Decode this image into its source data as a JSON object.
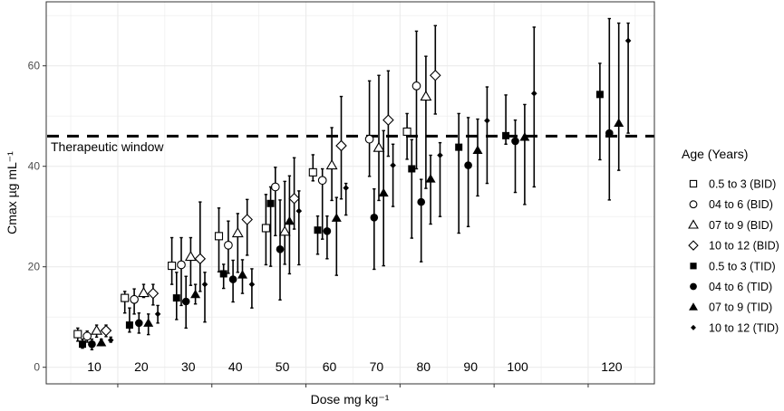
{
  "chart_data": {
    "type": "scatter",
    "title": "",
    "xlabel": "Dose mg kg⁻¹",
    "ylabel": "Cmax µg  mL⁻¹",
    "ylim": [
      0,
      70
    ],
    "yticks": [
      0,
      20,
      40,
      60
    ],
    "grid": true,
    "legend_title": "Age (Years)",
    "legend_position": "right",
    "reference_line": {
      "y": 46,
      "label": "Therapeutic window",
      "style": "dashed"
    },
    "dose_groups": [
      10,
      20,
      30,
      40,
      50,
      60,
      70,
      80,
      90,
      100,
      120
    ],
    "dose_labels": [
      "10",
      "20",
      "30",
      "40",
      "50",
      "60",
      "70",
      "80",
      "90",
      "100",
      "120"
    ],
    "series": [
      {
        "name": "0.5 to 3 (BID)",
        "marker": "square-open",
        "points": [
          [
            10,
            6.6,
            5.2,
            7.8
          ],
          [
            20,
            13.8,
            10.8,
            15.1
          ],
          [
            30,
            20.2,
            16.5,
            25.8
          ],
          [
            40,
            26.1,
            19.0,
            31.7
          ],
          [
            50,
            27.7,
            20.4,
            34.4
          ],
          [
            60,
            38.8,
            37.1,
            42.3
          ],
          [
            80,
            46.9,
            41.4,
            50.5
          ]
        ]
      },
      {
        "name": "04 to 6 (BID)",
        "marker": "circle-open",
        "points": [
          [
            10,
            6.2,
            5.0,
            7.2
          ],
          [
            20,
            13.5,
            10.6,
            15.6
          ],
          [
            30,
            20.4,
            12.3,
            25.8
          ],
          [
            40,
            24.3,
            18.7,
            29.1
          ],
          [
            50,
            35.9,
            26.2,
            39.8
          ],
          [
            60,
            37.2,
            25.5,
            39.5
          ],
          [
            70,
            45.4,
            38.0,
            57.0
          ],
          [
            80,
            56.0,
            39.5,
            66.9
          ]
        ]
      },
      {
        "name": "07 to 9 (BID)",
        "marker": "triangle-open",
        "points": [
          [
            10,
            7.3,
            6.0,
            8.4
          ],
          [
            20,
            14.8,
            13.9,
            16.5
          ],
          [
            30,
            22.0,
            16.3,
            25.8
          ],
          [
            40,
            26.7,
            18.9,
            30.6
          ],
          [
            50,
            27.0,
            20.5,
            37.0
          ],
          [
            60,
            40.2,
            33.2,
            47.7
          ],
          [
            70,
            43.7,
            33.2,
            58.1
          ],
          [
            80,
            53.9,
            35.6,
            61.9
          ]
        ]
      },
      {
        "name": "10 to 12 (BID)",
        "marker": "diamond-open",
        "points": [
          [
            10,
            7.3,
            6.1,
            8.4
          ],
          [
            20,
            14.7,
            12.4,
            16.5
          ],
          [
            30,
            21.6,
            15.1,
            32.9
          ],
          [
            40,
            29.4,
            22.3,
            33.4
          ],
          [
            50,
            33.6,
            27.5,
            41.7
          ],
          [
            60,
            44.1,
            33.5,
            53.9
          ],
          [
            70,
            49.2,
            42.0,
            59.0
          ],
          [
            80,
            58.1,
            50.4,
            68.0
          ]
        ]
      },
      {
        "name": "0.5 to 3 (TID)",
        "marker": "square-filled",
        "points": [
          [
            10,
            4.6,
            3.8,
            5.6
          ],
          [
            20,
            8.4,
            7.0,
            11.8
          ],
          [
            30,
            13.8,
            9.5,
            18.9
          ],
          [
            40,
            18.6,
            15.7,
            20.5
          ],
          [
            50,
            32.6,
            20.1,
            35.9
          ],
          [
            60,
            27.3,
            22.5,
            30.1
          ],
          [
            80,
            39.5,
            25.7,
            45.3
          ],
          [
            90,
            43.8,
            26.7,
            50.5
          ],
          [
            100,
            46.1,
            44.4,
            54.2
          ],
          [
            120,
            54.3,
            41.3,
            60.5
          ]
        ]
      },
      {
        "name": "04 to 6 (TID)",
        "marker": "circle-filled",
        "points": [
          [
            10,
            4.6,
            3.5,
            5.6
          ],
          [
            20,
            8.8,
            6.8,
            10.8
          ],
          [
            30,
            13.1,
            7.8,
            18.1
          ],
          [
            40,
            17.5,
            13.0,
            21.3
          ],
          [
            50,
            23.5,
            13.4,
            33.3
          ],
          [
            60,
            27.1,
            21.6,
            30.1
          ],
          [
            70,
            29.8,
            19.5,
            35.5
          ],
          [
            80,
            32.9,
            21.0,
            37.4
          ],
          [
            90,
            40.2,
            28.0,
            49.7
          ],
          [
            100,
            45.0,
            34.8,
            49.2
          ],
          [
            120,
            46.6,
            33.3,
            69.4
          ]
        ]
      },
      {
        "name": "07 to 9 (TID)",
        "marker": "triangle-filled",
        "points": [
          [
            10,
            4.9,
            4.3,
            5.6
          ],
          [
            20,
            8.8,
            6.5,
            10.6
          ],
          [
            30,
            14.5,
            12.6,
            16.5
          ],
          [
            40,
            18.4,
            14.7,
            21.4
          ],
          [
            50,
            29.1,
            18.6,
            38.1
          ],
          [
            60,
            29.7,
            18.3,
            33.8
          ],
          [
            70,
            34.7,
            20.2,
            47.1
          ],
          [
            80,
            37.5,
            28.5,
            42.2
          ],
          [
            90,
            43.2,
            34.1,
            49.4
          ],
          [
            100,
            45.8,
            32.4,
            52.3
          ],
          [
            120,
            48.6,
            39.2,
            68.5
          ]
        ]
      },
      {
        "name": "10 to 12 (TID)",
        "marker": "diamond-filled",
        "points": [
          [
            10,
            5.4,
            5.0,
            6.0
          ],
          [
            20,
            10.6,
            8.8,
            12.3
          ],
          [
            30,
            16.5,
            9.0,
            18.9
          ],
          [
            40,
            16.5,
            11.8,
            19.6
          ],
          [
            50,
            31.1,
            20.4,
            35.1
          ],
          [
            60,
            35.7,
            30.3,
            36.6
          ],
          [
            70,
            40.2,
            32.0,
            44.4
          ],
          [
            80,
            42.2,
            30.0,
            44.7
          ],
          [
            90,
            49.1,
            36.6,
            55.8
          ],
          [
            100,
            54.5,
            35.9,
            67.7
          ],
          [
            120,
            65.0,
            46.6,
            68.5
          ]
        ]
      }
    ]
  }
}
